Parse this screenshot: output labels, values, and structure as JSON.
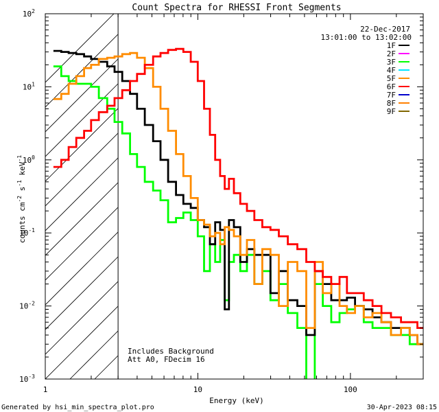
{
  "chart_data": {
    "type": "line",
    "title": "Count Spectra for RHESSI Front Segments",
    "xlabel": "Energy (keV)",
    "ylabel_parts": [
      "counts cm",
      "-2",
      " s",
      "-1",
      " keV",
      "-1"
    ],
    "xscale": "log",
    "yscale": "log",
    "xlim": [
      1,
      300
    ],
    "ylim": [
      0.001,
      100
    ],
    "x_ticks": [
      {
        "value": 1,
        "label": "1"
      },
      {
        "value": 10,
        "label": "10"
      },
      {
        "value": 100,
        "label": "100"
      }
    ],
    "y_ticks": [
      {
        "value": 0.001,
        "base": "10",
        "exp": "-3"
      },
      {
        "value": 0.01,
        "base": "10",
        "exp": "-2"
      },
      {
        "value": 0.1,
        "base": "10",
        "exp": "-1"
      },
      {
        "value": 1,
        "base": "10",
        "exp": "0"
      },
      {
        "value": 10,
        "base": "10",
        "exp": "1"
      },
      {
        "value": 100,
        "base": "10",
        "exp": "2"
      }
    ],
    "hatched_region_max_energy": 3,
    "date": "22-Dec-2017",
    "time_range": "13:01:00 to 13:02:00",
    "annotation_lines": [
      "Includes Background",
      "Att A0, FDecim 16"
    ],
    "legend": [
      {
        "label": "1F",
        "color": "#000000"
      },
      {
        "label": "2F",
        "color": "#ff00ff"
      },
      {
        "label": "3F",
        "color": "#00ff00"
      },
      {
        "label": "4F",
        "color": "#00e5ff"
      },
      {
        "label": "5F",
        "color": "#ff8c00"
      },
      {
        "label": "6F",
        "color": "#ff0000"
      },
      {
        "label": "7F",
        "color": "#0000cc"
      },
      {
        "label": "8F",
        "color": "#ff8000"
      },
      {
        "label": "9F",
        "color": "#806600"
      }
    ],
    "series": [
      {
        "name": "3F",
        "color": "#00ff00",
        "x": [
          1.2,
          1.35,
          1.5,
          1.7,
          1.9,
          2.1,
          2.4,
          2.7,
          3.0,
          3.4,
          3.8,
          4.2,
          4.8,
          5.4,
          6.0,
          6.8,
          7.6,
          8.5,
          9.5,
          10.5,
          11.5,
          12.5,
          13.5,
          14.5,
          15.5,
          16.5,
          18,
          20,
          22,
          25,
          28,
          32,
          36,
          42,
          48,
          55,
          62,
          70,
          80,
          90,
          100,
          115,
          130,
          150,
          170,
          200,
          230,
          260,
          290
        ],
        "y": [
          19,
          14,
          12,
          11,
          11,
          10,
          7.0,
          5.0,
          3.3,
          2.3,
          1.2,
          0.8,
          0.5,
          0.38,
          0.28,
          0.14,
          0.16,
          0.19,
          0.15,
          0.09,
          0.03,
          0.07,
          0.04,
          0.08,
          0.012,
          0.04,
          0.05,
          0.03,
          0.05,
          0.02,
          0.03,
          0.012,
          0.02,
          0.008,
          0.005,
          0.0008,
          0.02,
          0.01,
          0.006,
          0.008,
          0.009,
          0.01,
          0.006,
          0.005,
          0.005,
          0.004,
          0.004,
          0.003,
          0.003
        ]
      },
      {
        "name": "1F",
        "color": "#000000",
        "x": [
          1.2,
          1.35,
          1.5,
          1.7,
          1.9,
          2.1,
          2.4,
          2.7,
          3.0,
          3.4,
          3.8,
          4.2,
          4.8,
          5.4,
          6.0,
          6.8,
          7.6,
          8.5,
          9.5,
          10.5,
          11.5,
          12.5,
          13.5,
          14.5,
          15.5,
          16.5,
          18,
          20,
          22,
          25,
          28,
          32,
          36,
          42,
          48,
          55,
          62,
          70,
          80,
          90,
          100,
          115,
          130,
          150,
          170,
          200,
          230,
          260,
          290
        ],
        "y": [
          31,
          30,
          29,
          28,
          26,
          24,
          22,
          19,
          16,
          12,
          8.0,
          5.0,
          3.0,
          1.8,
          1.0,
          0.5,
          0.33,
          0.25,
          0.22,
          0.15,
          0.12,
          0.07,
          0.14,
          0.11,
          0.009,
          0.15,
          0.12,
          0.04,
          0.06,
          0.05,
          0.05,
          0.015,
          0.03,
          0.012,
          0.01,
          0.004,
          0.03,
          0.02,
          0.012,
          0.012,
          0.013,
          0.01,
          0.009,
          0.007,
          0.006,
          0.005,
          0.005,
          0.004,
          0.003
        ]
      },
      {
        "name": "5F",
        "color": "#ff8c00",
        "x": [
          1.2,
          1.35,
          1.5,
          1.7,
          1.9,
          2.1,
          2.4,
          2.7,
          3.0,
          3.4,
          3.8,
          4.2,
          4.8,
          5.4,
          6.0,
          6.8,
          7.6,
          8.5,
          9.5,
          10.5,
          11.5,
          12.5,
          13.5,
          14.5,
          15.5,
          16.5,
          18,
          20,
          22,
          25,
          28,
          32,
          36,
          42,
          48,
          55,
          62,
          70,
          80,
          90,
          100,
          115,
          130,
          150,
          170,
          200,
          230,
          260,
          290
        ],
        "y": [
          6.8,
          8.0,
          11,
          14,
          18,
          20,
          24,
          25,
          26,
          28,
          29,
          25,
          18,
          10,
          5.0,
          2.5,
          1.2,
          0.6,
          0.3,
          0.15,
          0.13,
          0.09,
          0.1,
          0.07,
          0.12,
          0.11,
          0.09,
          0.05,
          0.08,
          0.02,
          0.06,
          0.05,
          0.01,
          0.04,
          0.03,
          0.005,
          0.04,
          0.015,
          0.02,
          0.01,
          0.008,
          0.01,
          0.007,
          0.008,
          0.006,
          0.004,
          0.005,
          0.004,
          0.003
        ]
      },
      {
        "name": "6F",
        "color": "#ff0000",
        "x": [
          1.2,
          1.35,
          1.5,
          1.7,
          1.9,
          2.1,
          2.4,
          2.7,
          3.0,
          3.4,
          3.8,
          4.2,
          4.8,
          5.4,
          6.0,
          6.8,
          7.6,
          8.5,
          9.5,
          10.5,
          11.5,
          12.5,
          13.5,
          14.5,
          15.5,
          16.5,
          18,
          20,
          22,
          25,
          28,
          32,
          36,
          42,
          48,
          55,
          62,
          70,
          80,
          90,
          100,
          115,
          130,
          150,
          170,
          200,
          230,
          260,
          290
        ],
        "y": [
          0.8,
          1.0,
          1.5,
          2.0,
          2.5,
          3.5,
          4.5,
          5.5,
          7.0,
          9.0,
          12,
          15,
          20,
          26,
          29,
          32,
          33,
          30,
          22,
          12,
          5.0,
          2.2,
          1.0,
          0.6,
          0.4,
          0.55,
          0.35,
          0.25,
          0.2,
          0.15,
          0.12,
          0.11,
          0.09,
          0.07,
          0.06,
          0.04,
          0.03,
          0.025,
          0.02,
          0.025,
          0.015,
          0.015,
          0.012,
          0.01,
          0.008,
          0.007,
          0.006,
          0.006,
          0.005
        ]
      }
    ]
  },
  "footer": {
    "left": "Generated by hsi_min_spectra_plot.pro",
    "right": "30-Apr-2023 08:15"
  }
}
